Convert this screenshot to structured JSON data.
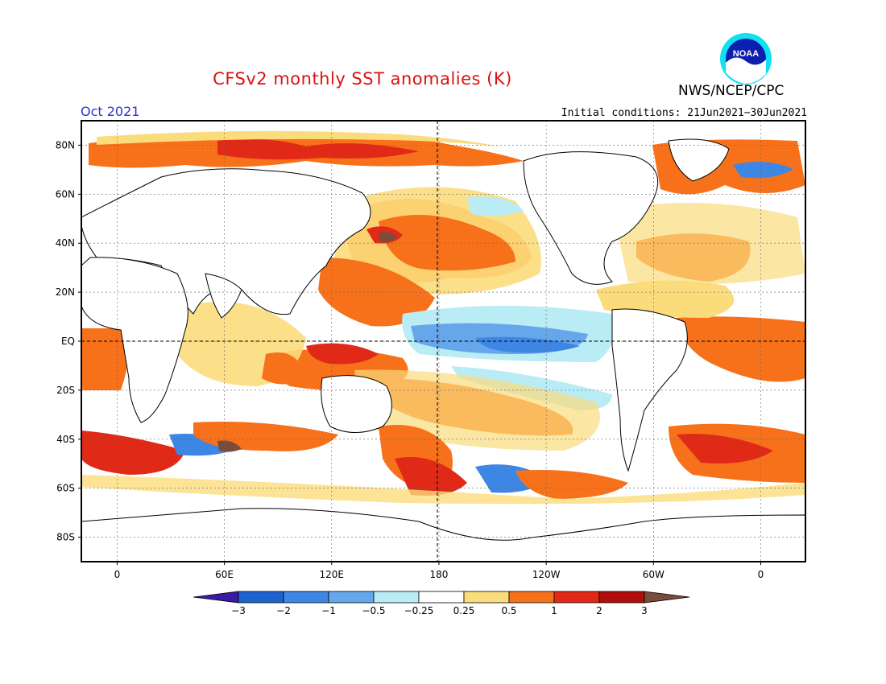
{
  "header": {
    "title": "CFSv2 monthly SST anomalies (K)",
    "agency": "NWS/NCEP/CPC",
    "logo_text": "NOAA",
    "period": "Oct 2021",
    "initial_conditions": "Initial conditions: 21Jun2021−30Jun2021"
  },
  "map": {
    "lat_labels": [
      {
        "lat": 80,
        "label": "80N"
      },
      {
        "lat": 60,
        "label": "60N"
      },
      {
        "lat": 40,
        "label": "40N"
      },
      {
        "lat": 20,
        "label": "20N"
      },
      {
        "lat": 0,
        "label": "EQ"
      },
      {
        "lat": -20,
        "label": "20S"
      },
      {
        "lat": -40,
        "label": "40S"
      },
      {
        "lat": -60,
        "label": "60S"
      },
      {
        "lat": -80,
        "label": "80S"
      }
    ],
    "lon_labels": [
      {
        "lon": 0,
        "label": "0"
      },
      {
        "lon": 60,
        "label": "60E"
      },
      {
        "lon": 120,
        "label": "120E"
      },
      {
        "lon": 180,
        "label": "180"
      },
      {
        "lon": 240,
        "label": "120W"
      },
      {
        "lon": 300,
        "label": "60W"
      },
      {
        "lon": 360,
        "label": "0"
      }
    ],
    "lon_range": [
      -20,
      385
    ],
    "lat_range": [
      -90,
      90
    ]
  },
  "colorbar": {
    "tick_labels": [
      "−3",
      "−2",
      "−1",
      "−0.5",
      "−0.25",
      "0.25",
      "0.5",
      "1",
      "2",
      "3"
    ],
    "colors": [
      "#3b1aa8",
      "#1e62d0",
      "#3d86e4",
      "#66a7ec",
      "#b9ecf5",
      "#ffffff",
      "#fbdc7c",
      "#f7711b",
      "#e02a17",
      "#b00d0d",
      "#7a4c3b"
    ]
  }
}
